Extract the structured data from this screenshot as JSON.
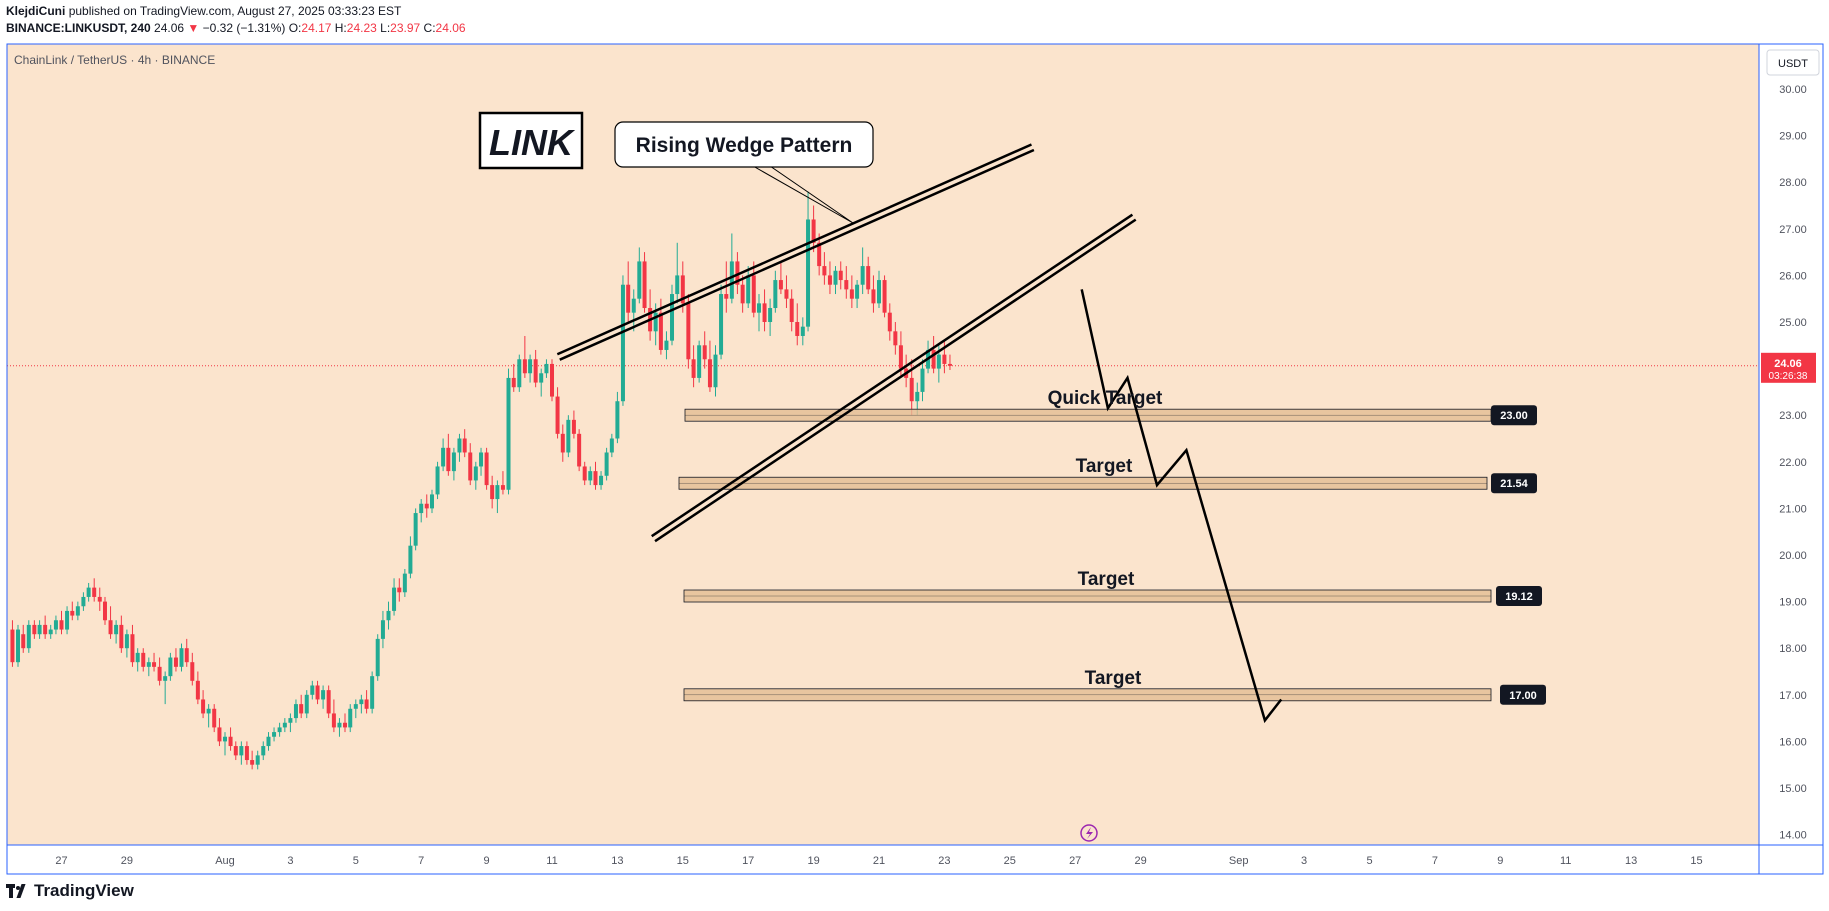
{
  "header": {
    "author": "KlejdiCuni",
    "published_text": "published on TradingView.com, August 27, 2025 03:33:23 EST",
    "symbol": "BINANCE:LINKUSDT, 240",
    "last": "24.06",
    "change": "−0.32 (−1.31%)",
    "o_label": "O:",
    "o": "24.17",
    "h_label": "H:",
    "h": "24.23",
    "l_label": "L:",
    "l": "23.97",
    "c_label": "C:",
    "c": "24.06"
  },
  "footer": {
    "brand": "TradingView"
  },
  "colors": {
    "background": "#fbe4cd",
    "up": "#22ab94",
    "down": "#f23645",
    "frame": "#2962ff",
    "zone": "#e3bd93",
    "price_badge": "#f23645"
  },
  "icons": {
    "lightning": "lightning-icon",
    "logo": "tradingview-logo-icon"
  },
  "chart_data": {
    "type": "candlestick",
    "title": "ChainLink / TetherUS · 4h · BINANCE",
    "currency": "USDT",
    "ylim": [
      13.8,
      30.6
    ],
    "y_ticks": [
      "30.00",
      "29.00",
      "28.00",
      "27.00",
      "26.00",
      "25.00",
      "24.00",
      "23.00",
      "22.00",
      "21.00",
      "20.00",
      "19.00",
      "18.00",
      "17.00",
      "16.00",
      "15.00",
      "14.00"
    ],
    "x_ticks": [
      {
        "label": "27",
        "day": -5
      },
      {
        "label": "29",
        "day": -3
      },
      {
        "label": "Aug",
        "day": 0
      },
      {
        "label": "3",
        "day": 2
      },
      {
        "label": "5",
        "day": 4
      },
      {
        "label": "7",
        "day": 6
      },
      {
        "label": "9",
        "day": 8
      },
      {
        "label": "11",
        "day": 10
      },
      {
        "label": "13",
        "day": 12
      },
      {
        "label": "15",
        "day": 14
      },
      {
        "label": "17",
        "day": 16
      },
      {
        "label": "19",
        "day": 18
      },
      {
        "label": "21",
        "day": 20
      },
      {
        "label": "23",
        "day": 22
      },
      {
        "label": "25",
        "day": 24
      },
      {
        "label": "27",
        "day": 26
      },
      {
        "label": "29",
        "day": 28
      },
      {
        "label": "Sep",
        "day": 31
      },
      {
        "label": "3",
        "day": 33
      },
      {
        "label": "5",
        "day": 35
      },
      {
        "label": "7",
        "day": 37
      },
      {
        "label": "9",
        "day": 39
      },
      {
        "label": "11",
        "day": 41
      },
      {
        "label": "13",
        "day": 43
      },
      {
        "label": "15",
        "day": 45
      }
    ],
    "current_price": {
      "value": 24.06,
      "label": "24.06",
      "countdown": "03:26:38"
    },
    "annotations": {
      "symbol_label": "LINK",
      "pattern_label": "Rising Wedge Pattern",
      "targets": [
        {
          "label": "Quick Target",
          "value": 23.0,
          "badge": "23.00"
        },
        {
          "label": "Target",
          "value": 21.54,
          "badge": "21.54"
        },
        {
          "label": "Target",
          "value": 19.12,
          "badge": "19.12"
        },
        {
          "label": "Target",
          "value": 17.0,
          "badge": "17.00"
        }
      ],
      "wedge_upper": [
        [
          10.2,
          24.25
        ],
        [
          24.7,
          28.75
        ]
      ],
      "wedge_lower": [
        [
          13.1,
          20.35
        ],
        [
          27.8,
          27.25
        ]
      ],
      "projection": [
        [
          26.2,
          25.7
        ],
        [
          27.0,
          23.15
        ],
        [
          27.6,
          23.8
        ],
        [
          28.5,
          21.5
        ],
        [
          29.4,
          22.25
        ],
        [
          31.8,
          16.45
        ],
        [
          32.3,
          16.9
        ]
      ]
    },
    "candles": [
      [
        -6.5,
        18.4,
        18.6,
        17.6,
        17.7
      ],
      [
        -6.33,
        17.7,
        18.5,
        17.6,
        18.4
      ],
      [
        -6.17,
        18.3,
        18.5,
        17.9,
        18.0
      ],
      [
        -6,
        18.0,
        18.6,
        17.9,
        18.5
      ],
      [
        -5.83,
        18.5,
        18.6,
        18.2,
        18.3
      ],
      [
        -5.67,
        18.3,
        18.6,
        18.2,
        18.5
      ],
      [
        -5.5,
        18.5,
        18.7,
        18.2,
        18.3
      ],
      [
        -5.33,
        18.3,
        18.5,
        18.2,
        18.4
      ],
      [
        -5.17,
        18.4,
        18.7,
        18.3,
        18.6
      ],
      [
        -5,
        18.6,
        18.8,
        18.3,
        18.4
      ],
      [
        -4.83,
        18.4,
        18.9,
        18.3,
        18.8
      ],
      [
        -4.67,
        18.8,
        19.0,
        18.6,
        18.7
      ],
      [
        -4.5,
        18.7,
        19.0,
        18.6,
        18.9
      ],
      [
        -4.33,
        18.9,
        19.2,
        18.8,
        19.1
      ],
      [
        -4.17,
        19.1,
        19.4,
        19.0,
        19.3
      ],
      [
        -4,
        19.3,
        19.5,
        19.0,
        19.1
      ],
      [
        -3.83,
        19.1,
        19.3,
        18.8,
        19.0
      ],
      [
        -3.67,
        19.0,
        19.1,
        18.5,
        18.6
      ],
      [
        -3.5,
        18.6,
        18.9,
        18.2,
        18.3
      ],
      [
        -3.33,
        18.3,
        18.6,
        18.1,
        18.5
      ],
      [
        -3.17,
        18.5,
        18.7,
        17.9,
        18.0
      ],
      [
        -3,
        18.0,
        18.4,
        17.8,
        18.3
      ],
      [
        -2.83,
        18.3,
        18.5,
        17.6,
        17.7
      ],
      [
        -2.67,
        17.7,
        18.0,
        17.5,
        17.9
      ],
      [
        -2.5,
        17.9,
        18.0,
        17.5,
        17.6
      ],
      [
        -2.33,
        17.6,
        17.8,
        17.4,
        17.7
      ],
      [
        -2.17,
        17.7,
        17.9,
        17.5,
        17.6
      ],
      [
        -2,
        17.6,
        17.8,
        17.2,
        17.3
      ],
      [
        -1.83,
        17.3,
        17.5,
        16.8,
        17.4
      ],
      [
        -1.67,
        17.4,
        17.9,
        17.3,
        17.8
      ],
      [
        -1.5,
        17.8,
        18.0,
        17.5,
        17.6
      ],
      [
        -1.33,
        17.6,
        18.1,
        17.5,
        18.0
      ],
      [
        -1.17,
        18.0,
        18.2,
        17.6,
        17.7
      ],
      [
        -1,
        17.7,
        17.9,
        17.2,
        17.3
      ],
      [
        -0.83,
        17.3,
        17.5,
        16.8,
        16.9
      ],
      [
        -0.67,
        16.9,
        17.1,
        16.5,
        16.6
      ],
      [
        -0.5,
        16.6,
        16.8,
        16.3,
        16.7
      ],
      [
        -0.33,
        16.7,
        16.8,
        16.2,
        16.3
      ],
      [
        -0.17,
        16.3,
        16.5,
        15.9,
        16.0
      ],
      [
        0,
        16.0,
        16.2,
        15.7,
        16.1
      ],
      [
        0.17,
        16.1,
        16.3,
        15.8,
        15.9
      ],
      [
        0.33,
        15.9,
        16.0,
        15.6,
        15.7
      ],
      [
        0.5,
        15.7,
        16.0,
        15.5,
        15.9
      ],
      [
        0.67,
        15.9,
        16.0,
        15.5,
        15.6
      ],
      [
        0.83,
        15.6,
        15.8,
        15.4,
        15.5
      ],
      [
        1,
        15.5,
        15.8,
        15.4,
        15.7
      ],
      [
        1.17,
        15.7,
        16.0,
        15.6,
        15.9
      ],
      [
        1.33,
        15.9,
        16.2,
        15.8,
        16.1
      ],
      [
        1.5,
        16.1,
        16.3,
        16.0,
        16.2
      ],
      [
        1.67,
        16.2,
        16.4,
        16.1,
        16.3
      ],
      [
        1.83,
        16.3,
        16.5,
        16.2,
        16.4
      ],
      [
        2,
        16.4,
        16.6,
        16.2,
        16.5
      ],
      [
        2.17,
        16.5,
        16.9,
        16.4,
        16.8
      ],
      [
        2.33,
        16.8,
        17.0,
        16.5,
        16.6
      ],
      [
        2.5,
        16.6,
        17.1,
        16.5,
        17.0
      ],
      [
        2.67,
        17.0,
        17.3,
        16.9,
        17.2
      ],
      [
        2.83,
        17.2,
        17.3,
        16.8,
        16.9
      ],
      [
        3,
        16.9,
        17.2,
        16.7,
        17.1
      ],
      [
        3.17,
        17.1,
        17.2,
        16.5,
        16.6
      ],
      [
        3.33,
        16.6,
        16.9,
        16.2,
        16.3
      ],
      [
        3.5,
        16.3,
        16.5,
        16.1,
        16.4
      ],
      [
        3.67,
        16.4,
        16.6,
        16.2,
        16.3
      ],
      [
        3.83,
        16.3,
        16.8,
        16.2,
        16.7
      ],
      [
        4,
        16.7,
        16.9,
        16.5,
        16.8
      ],
      [
        4.17,
        16.8,
        17.0,
        16.6,
        16.9
      ],
      [
        4.33,
        16.9,
        17.1,
        16.6,
        16.7
      ],
      [
        4.5,
        16.7,
        17.5,
        16.6,
        17.4
      ],
      [
        4.67,
        17.4,
        18.3,
        17.3,
        18.2
      ],
      [
        4.83,
        18.2,
        18.8,
        18.0,
        18.6
      ],
      [
        5,
        18.6,
        19.0,
        18.4,
        18.8
      ],
      [
        5.17,
        18.8,
        19.5,
        18.7,
        19.3
      ],
      [
        5.33,
        19.3,
        19.5,
        19.0,
        19.2
      ],
      [
        5.5,
        19.2,
        19.7,
        19.1,
        19.6
      ],
      [
        5.67,
        19.6,
        20.4,
        19.5,
        20.2
      ],
      [
        5.83,
        20.2,
        21.0,
        20.1,
        20.9
      ],
      [
        6,
        20.9,
        21.2,
        20.7,
        21.1
      ],
      [
        6.17,
        21.1,
        21.3,
        20.8,
        21.0
      ],
      [
        6.33,
        21.0,
        21.4,
        20.9,
        21.3
      ],
      [
        6.5,
        21.3,
        22.0,
        21.2,
        21.9
      ],
      [
        6.67,
        21.9,
        22.5,
        21.8,
        22.3
      ],
      [
        6.83,
        22.3,
        22.6,
        21.7,
        21.8
      ],
      [
        7,
        21.8,
        22.3,
        21.6,
        22.2
      ],
      [
        7.17,
        22.2,
        22.6,
        22.0,
        22.5
      ],
      [
        7.33,
        22.5,
        22.7,
        22.1,
        22.2
      ],
      [
        7.5,
        22.2,
        22.4,
        21.5,
        21.6
      ],
      [
        7.67,
        21.6,
        22.0,
        21.4,
        21.9
      ],
      [
        7.83,
        21.9,
        22.3,
        21.7,
        22.2
      ],
      [
        8,
        22.2,
        22.3,
        21.4,
        21.5
      ],
      [
        8.17,
        21.5,
        21.7,
        21.0,
        21.2
      ],
      [
        8.33,
        21.2,
        21.6,
        20.9,
        21.5
      ],
      [
        8.5,
        21.5,
        21.8,
        21.3,
        21.4
      ],
      [
        8.67,
        21.4,
        24.0,
        21.3,
        23.8
      ],
      [
        8.83,
        23.8,
        24.1,
        23.5,
        23.6
      ],
      [
        9,
        23.6,
        24.3,
        23.5,
        24.2
      ],
      [
        9.17,
        24.2,
        24.7,
        23.8,
        23.9
      ],
      [
        9.33,
        23.9,
        24.3,
        23.7,
        24.2
      ],
      [
        9.5,
        24.2,
        24.4,
        23.6,
        23.7
      ],
      [
        9.67,
        23.7,
        24.0,
        23.4,
        23.9
      ],
      [
        9.83,
        23.9,
        24.2,
        23.8,
        24.1
      ],
      [
        10,
        24.1,
        24.2,
        23.3,
        23.4
      ],
      [
        10.17,
        23.4,
        23.6,
        22.5,
        22.6
      ],
      [
        10.33,
        22.6,
        22.8,
        22.0,
        22.2
      ],
      [
        10.5,
        22.2,
        23.0,
        22.1,
        22.9
      ],
      [
        10.67,
        22.9,
        23.1,
        22.5,
        22.6
      ],
      [
        10.83,
        22.6,
        22.7,
        21.8,
        21.9
      ],
      [
        11,
        21.9,
        22.0,
        21.5,
        21.6
      ],
      [
        11.17,
        21.6,
        21.9,
        21.5,
        21.8
      ],
      [
        11.33,
        21.8,
        22.0,
        21.4,
        21.5
      ],
      [
        11.5,
        21.5,
        21.8,
        21.4,
        21.7
      ],
      [
        11.67,
        21.7,
        22.3,
        21.6,
        22.2
      ],
      [
        11.83,
        22.2,
        22.6,
        22.1,
        22.5
      ],
      [
        12,
        22.5,
        23.5,
        22.4,
        23.3
      ],
      [
        12.17,
        23.3,
        26.0,
        23.2,
        25.8
      ],
      [
        12.33,
        25.8,
        26.3,
        25.0,
        25.2
      ],
      [
        12.5,
        25.2,
        25.7,
        24.8,
        25.5
      ],
      [
        12.67,
        25.5,
        26.6,
        25.4,
        26.3
      ],
      [
        12.83,
        26.3,
        26.5,
        25.2,
        25.3
      ],
      [
        13,
        25.3,
        25.7,
        24.6,
        24.8
      ],
      [
        13.17,
        24.8,
        25.4,
        24.5,
        25.2
      ],
      [
        13.33,
        25.2,
        25.5,
        24.3,
        24.4
      ],
      [
        13.5,
        24.4,
        24.8,
        24.2,
        24.6
      ],
      [
        13.67,
        24.6,
        25.8,
        24.5,
        25.6
      ],
      [
        13.83,
        25.6,
        26.7,
        25.4,
        26.0
      ],
      [
        14,
        26.0,
        26.3,
        25.2,
        25.4
      ],
      [
        14.17,
        25.4,
        25.6,
        24.0,
        24.2
      ],
      [
        14.33,
        24.2,
        24.5,
        23.6,
        23.8
      ],
      [
        14.5,
        23.8,
        24.6,
        23.7,
        24.5
      ],
      [
        14.67,
        24.5,
        24.8,
        24.0,
        24.2
      ],
      [
        14.83,
        24.2,
        24.6,
        23.5,
        23.6
      ],
      [
        15,
        23.6,
        24.5,
        23.4,
        24.3
      ],
      [
        15.17,
        24.3,
        25.8,
        24.2,
        25.6
      ],
      [
        15.33,
        25.6,
        26.3,
        25.2,
        25.5
      ],
      [
        15.5,
        25.5,
        26.9,
        25.4,
        26.3
      ],
      [
        15.67,
        26.3,
        26.5,
        25.6,
        25.8
      ],
      [
        15.83,
        25.8,
        26.0,
        25.2,
        25.4
      ],
      [
        16,
        25.4,
        26.2,
        25.3,
        26.0
      ],
      [
        16.17,
        26.0,
        26.3,
        25.1,
        25.2
      ],
      [
        16.33,
        25.2,
        25.6,
        24.8,
        25.4
      ],
      [
        16.5,
        25.4,
        25.7,
        24.8,
        25.0
      ],
      [
        16.67,
        25.0,
        25.5,
        24.7,
        25.3
      ],
      [
        16.83,
        25.3,
        26.1,
        25.2,
        25.9
      ],
      [
        17,
        25.9,
        26.3,
        25.6,
        25.7
      ],
      [
        17.17,
        25.7,
        26.0,
        25.3,
        25.5
      ],
      [
        17.33,
        25.5,
        25.7,
        24.8,
        25.0
      ],
      [
        17.5,
        25.0,
        25.4,
        24.5,
        24.7
      ],
      [
        17.67,
        24.7,
        25.1,
        24.5,
        24.9
      ],
      [
        17.83,
        24.9,
        27.8,
        24.8,
        27.2
      ],
      [
        18,
        27.2,
        27.5,
        26.5,
        26.7
      ],
      [
        18.17,
        26.7,
        26.9,
        26.0,
        26.2
      ],
      [
        18.33,
        26.2,
        26.5,
        25.8,
        26.0
      ],
      [
        18.5,
        26.0,
        26.3,
        25.6,
        25.8
      ],
      [
        18.67,
        25.8,
        26.2,
        25.6,
        26.1
      ],
      [
        18.83,
        26.1,
        26.3,
        25.7,
        25.9
      ],
      [
        19,
        25.9,
        26.2,
        25.5,
        25.7
      ],
      [
        19.17,
        25.7,
        26.0,
        25.3,
        25.5
      ],
      [
        19.33,
        25.5,
        25.9,
        25.3,
        25.8
      ],
      [
        19.5,
        25.8,
        26.6,
        25.6,
        26.2
      ],
      [
        19.67,
        26.2,
        26.4,
        25.6,
        25.7
      ],
      [
        19.83,
        25.7,
        26.0,
        25.2,
        25.4
      ],
      [
        20,
        25.4,
        26.1,
        25.3,
        25.9
      ],
      [
        20.17,
        25.9,
        26.0,
        25.1,
        25.2
      ],
      [
        20.33,
        25.2,
        25.4,
        24.6,
        24.8
      ],
      [
        20.5,
        24.8,
        25.0,
        24.3,
        24.5
      ],
      [
        20.67,
        24.5,
        24.8,
        23.8,
        24.0
      ],
      [
        20.83,
        24.0,
        24.3,
        23.6,
        23.8
      ],
      [
        21,
        23.8,
        24.2,
        23.0,
        23.3
      ],
      [
        21.17,
        23.3,
        23.7,
        23.0,
        23.5
      ],
      [
        21.33,
        23.5,
        24.2,
        23.3,
        24.0
      ],
      [
        21.5,
        24.0,
        24.6,
        23.9,
        24.4
      ],
      [
        21.67,
        24.4,
        24.7,
        23.9,
        24.0
      ],
      [
        21.83,
        24.0,
        24.5,
        23.7,
        24.3
      ],
      [
        22,
        24.3,
        24.6,
        23.9,
        24.1
      ],
      [
        22.17,
        24.1,
        24.3,
        23.97,
        24.06
      ]
    ]
  }
}
